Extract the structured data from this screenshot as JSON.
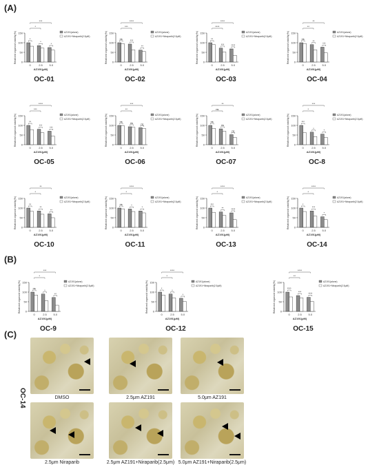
{
  "panels": {
    "A": "(A)",
    "B": "(B)",
    "C": "(C)"
  },
  "legend": {
    "alone": "AZ191(alone)",
    "combo": "AZ191+Niraparib(2.5μM)"
  },
  "axes": {
    "ylabel": "Relatived organoid viability(%)",
    "xlabel": "AZ191(μM)",
    "xticks": [
      "0",
      "2.5",
      "5.0"
    ],
    "yticks": [
      "0",
      "50",
      "100",
      "150"
    ]
  },
  "chart_data": [
    {
      "name": "OC-01",
      "type": "bar",
      "ylim": [
        0,
        150
      ],
      "categories": [
        "0",
        "2.5",
        "5.0"
      ],
      "series": [
        {
          "name": "AZ191(alone)",
          "values": [
            100,
            85,
            75
          ]
        },
        {
          "name": "AZ191+Niraparib(2.5μM)",
          "values": [
            82,
            72,
            62
          ]
        }
      ],
      "pair_sig": [
        "*",
        "*",
        "*"
      ],
      "top_sig": [
        "*",
        "***"
      ]
    },
    {
      "name": "OC-02",
      "type": "bar",
      "ylim": [
        0,
        150
      ],
      "categories": [
        "0",
        "2.5",
        "5.0"
      ],
      "series": [
        {
          "name": "AZ191(alone)",
          "values": [
            100,
            93,
            62
          ]
        },
        {
          "name": "AZ191+Niraparib(2.5μM)",
          "values": [
            95,
            63,
            55
          ]
        }
      ],
      "pair_sig": [
        "ns",
        "***",
        "**"
      ],
      "top_sig": [
        "***",
        "****"
      ]
    },
    {
      "name": "OC-03",
      "type": "bar",
      "ylim": [
        0,
        150
      ],
      "categories": [
        "0",
        "2.5",
        "5.0"
      ],
      "series": [
        {
          "name": "AZ191(alone)",
          "values": [
            100,
            72,
            68
          ]
        },
        {
          "name": "AZ191+Niraparib(2.5μM)",
          "values": [
            90,
            52,
            35
          ]
        }
      ],
      "pair_sig": [
        "**",
        "***",
        "****"
      ],
      "top_sig": [
        "****",
        "****"
      ]
    },
    {
      "name": "OC-04",
      "type": "bar",
      "ylim": [
        0,
        150
      ],
      "categories": [
        "0",
        "2.5",
        "5.0"
      ],
      "series": [
        {
          "name": "AZ191(alone)",
          "values": [
            100,
            90,
            77
          ]
        },
        {
          "name": "AZ191+Niraparib(2.5μM)",
          "values": [
            96,
            63,
            48
          ]
        }
      ],
      "pair_sig": [
        "ns",
        "**",
        "***"
      ],
      "top_sig": [
        "**",
        "**"
      ]
    },
    {
      "name": "OC-05",
      "type": "bar",
      "ylim": [
        0,
        150
      ],
      "categories": [
        "0",
        "2.5",
        "5.0"
      ],
      "series": [
        {
          "name": "AZ191(alone)",
          "values": [
            100,
            80,
            70
          ]
        },
        {
          "name": "AZ191+Niraparib(2.5μM)",
          "values": [
            78,
            62,
            45
          ]
        }
      ],
      "pair_sig": [
        "**",
        "***",
        "***"
      ],
      "top_sig": [
        "***",
        "****"
      ]
    },
    {
      "name": "OC-06",
      "type": "bar",
      "ylim": [
        0,
        150
      ],
      "categories": [
        "0",
        "2.5",
        "5.0"
      ],
      "series": [
        {
          "name": "AZ191(alone)",
          "values": [
            100,
            93,
            88
          ]
        },
        {
          "name": "AZ191+Niraparib(2.5μM)",
          "values": [
            98,
            90,
            85
          ]
        }
      ],
      "pair_sig": [
        "ns",
        "ns",
        "ns"
      ],
      "top_sig": [
        "**",
        "***"
      ]
    },
    {
      "name": "OC-07",
      "type": "bar",
      "ylim": [
        0,
        150
      ],
      "categories": [
        "0",
        "2.5",
        "5.0"
      ],
      "series": [
        {
          "name": "AZ191(alone)",
          "values": [
            100,
            82,
            52
          ]
        },
        {
          "name": "AZ191+Niraparib(2.5μM)",
          "values": [
            85,
            70,
            38
          ]
        }
      ],
      "pair_sig": [
        "ns",
        "ns",
        "ns"
      ],
      "top_sig": [
        "ns",
        "**"
      ]
    },
    {
      "name": "OC-8",
      "type": "bar",
      "ylim": [
        0,
        150
      ],
      "categories": [
        "0",
        "2.5",
        "5.0"
      ],
      "series": [
        {
          "name": "AZ191(alone)",
          "values": [
            100,
            65,
            55
          ]
        },
        {
          "name": "AZ191+Niraparib(2.5μM)",
          "values": [
            62,
            42,
            38
          ]
        }
      ],
      "pair_sig": [
        "***",
        "*",
        "*"
      ],
      "top_sig": [
        "*",
        "***"
      ]
    },
    {
      "name": "OC-10",
      "type": "bar",
      "ylim": [
        0,
        150
      ],
      "categories": [
        "0",
        "2.5",
        "5.0"
      ],
      "series": [
        {
          "name": "AZ191(alone)",
          "values": [
            100,
            85,
            70
          ]
        },
        {
          "name": "AZ191+Niraparib(2.5μM)",
          "values": [
            83,
            68,
            50
          ]
        }
      ],
      "pair_sig": [
        "**",
        "**",
        "**"
      ],
      "top_sig": [
        "*",
        "**"
      ]
    },
    {
      "name": "OC-11",
      "type": "bar",
      "ylim": [
        0,
        150
      ],
      "categories": [
        "0",
        "2.5",
        "5.0"
      ],
      "series": [
        {
          "name": "AZ191(alone)",
          "values": [
            100,
            95,
            85
          ]
        },
        {
          "name": "AZ191+Niraparib(2.5μM)",
          "values": [
            96,
            82,
            75
          ]
        }
      ],
      "pair_sig": [
        "ns",
        "*",
        "*"
      ],
      "top_sig": [
        "*",
        "****"
      ]
    },
    {
      "name": "OC-13",
      "type": "bar",
      "ylim": [
        0,
        150
      ],
      "categories": [
        "0",
        "2.5",
        "5.0"
      ],
      "series": [
        {
          "name": "AZ191(alone)",
          "values": [
            100,
            80,
            75
          ]
        },
        {
          "name": "AZ191+Niraparib(2.5μM)",
          "values": [
            78,
            62,
            40
          ]
        }
      ],
      "pair_sig": [
        "***",
        "**",
        "****"
      ],
      "top_sig": [
        "*",
        "****"
      ]
    },
    {
      "name": "OC-14",
      "type": "bar",
      "ylim": [
        0,
        150
      ],
      "categories": [
        "0",
        "2.5",
        "5.0"
      ],
      "series": [
        {
          "name": "AZ191(alone)",
          "values": [
            100,
            85,
            55
          ]
        },
        {
          "name": "AZ191+Niraparib(2.5μM)",
          "values": [
            82,
            58,
            40
          ]
        }
      ],
      "pair_sig": [
        "*",
        "***",
        "*"
      ],
      "top_sig": [
        "*",
        "****"
      ]
    },
    {
      "name": "OC-9",
      "type": "bar",
      "ylim": [
        0,
        150
      ],
      "categories": [
        "0",
        "2.5",
        "5.0"
      ],
      "series": [
        {
          "name": "AZ191(alone)",
          "values": [
            100,
            90,
            72
          ]
        },
        {
          "name": "AZ191+Niraparib(2.5μM)",
          "values": [
            85,
            55,
            32
          ]
        }
      ],
      "pair_sig": [
        "ns",
        "*",
        "**"
      ],
      "top_sig": [
        "*",
        "***"
      ]
    },
    {
      "name": "OC-12",
      "type": "bar",
      "ylim": [
        0,
        150
      ],
      "categories": [
        "0",
        "2.5",
        "5.0"
      ],
      "series": [
        {
          "name": "AZ191(alone)",
          "values": [
            100,
            90,
            68
          ]
        },
        {
          "name": "AZ191+Niraparib(2.5μM)",
          "values": [
            85,
            70,
            52
          ]
        }
      ],
      "pair_sig": [
        "*",
        "*",
        "*"
      ],
      "top_sig": [
        "*",
        "****"
      ]
    },
    {
      "name": "OC-15",
      "type": "bar",
      "ylim": [
        0,
        150
      ],
      "categories": [
        "0",
        "2.5",
        "5.0"
      ],
      "series": [
        {
          "name": "AZ191(alone)",
          "values": [
            100,
            82,
            73
          ]
        },
        {
          "name": "AZ191+Niraparib(2.5μM)",
          "values": [
            75,
            70,
            52
          ]
        }
      ],
      "pair_sig": [
        "****",
        "***",
        "****"
      ],
      "top_sig": [
        "**",
        "****"
      ]
    }
  ],
  "micrographs": {
    "sample": "OC-14",
    "labels": [
      "DMSO",
      "2.5μm AZ191",
      "5.0μm AZ191",
      "2.5μm Niraparib",
      "2.5μm AZ191+Niraparib(2.5μm)",
      "5.0μm AZ191+Niraparib(2.5μm)"
    ]
  }
}
